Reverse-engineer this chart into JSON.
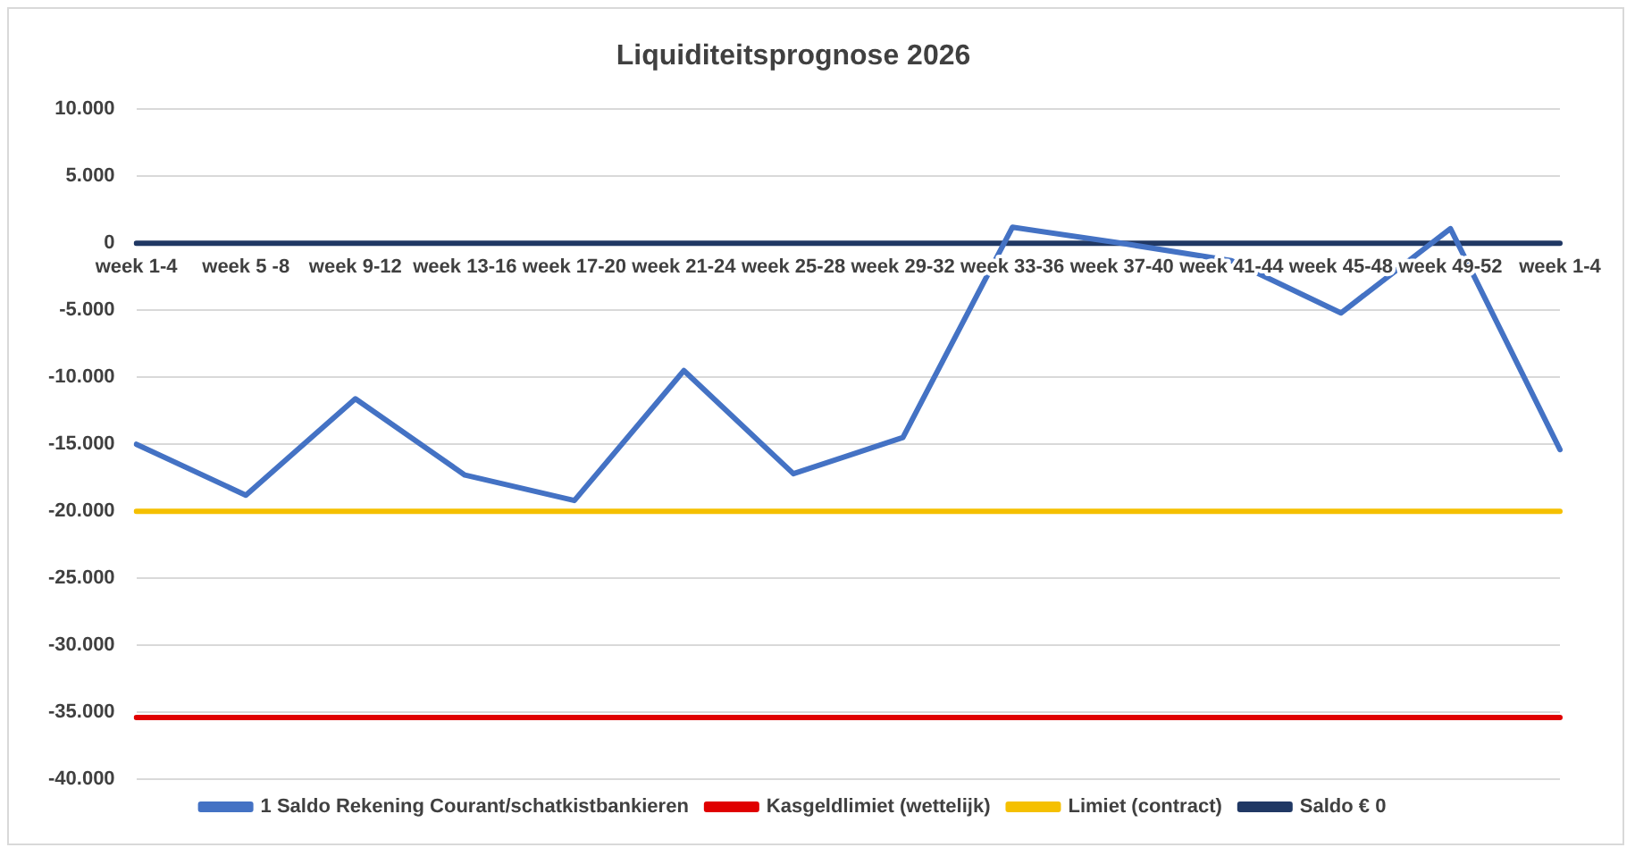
{
  "chart_data": {
    "type": "line",
    "title": "Liquiditeitsprognose 2026",
    "categories": [
      "week 1-4",
      "week 5 -8",
      "week 9-12",
      "week 13-16",
      "week 17-20",
      "week 21-24",
      "week 25-28",
      "week 29-32",
      "week 33-36",
      "week 37-40",
      "week 41-44",
      "week 45-48",
      "week 49-52",
      "week 1-4"
    ],
    "series": [
      {
        "name": "1 Saldo Rekening Courant/schatkistbankieren",
        "color": "#4472c4",
        "values": [
          -15000,
          -18800,
          -11600,
          -17300,
          -19200,
          -9500,
          -17200,
          -14500,
          1200,
          0,
          -1300,
          -5200,
          1100,
          -15400
        ]
      },
      {
        "name": "Kasgeldlimiet (wettelijk)",
        "color": "#e00000",
        "values": [
          -35400,
          -35400,
          -35400,
          -35400,
          -35400,
          -35400,
          -35400,
          -35400,
          -35400,
          -35400,
          -35400,
          -35400,
          -35400,
          -35400
        ]
      },
      {
        "name": "Limiet (contract)",
        "color": "#f5c000",
        "values": [
          -20000,
          -20000,
          -20000,
          -20000,
          -20000,
          -20000,
          -20000,
          -20000,
          -20000,
          -20000,
          -20000,
          -20000,
          -20000,
          -20000
        ]
      },
      {
        "name": "Saldo € 0",
        "color": "#203864",
        "values": [
          0,
          0,
          0,
          0,
          0,
          0,
          0,
          0,
          0,
          0,
          0,
          0,
          0,
          0
        ]
      }
    ],
    "ylim": [
      -40000,
      10000
    ],
    "yticks": [
      {
        "value": -40000,
        "label": "-40.000"
      },
      {
        "value": -35000,
        "label": "-35.000"
      },
      {
        "value": -30000,
        "label": "-30.000"
      },
      {
        "value": -25000,
        "label": "-25.000"
      },
      {
        "value": -20000,
        "label": "-20.000"
      },
      {
        "value": -15000,
        "label": "-15.000"
      },
      {
        "value": -10000,
        "label": "-10.000"
      },
      {
        "value": -5000,
        "label": "-5.000"
      },
      0,
      {
        "value": 5000,
        "label": "5.000"
      },
      {
        "value": 10000,
        "label": "10.000"
      }
    ],
    "grid": "y",
    "legend": "bottom",
    "marker": "none",
    "line_style": "solid"
  }
}
